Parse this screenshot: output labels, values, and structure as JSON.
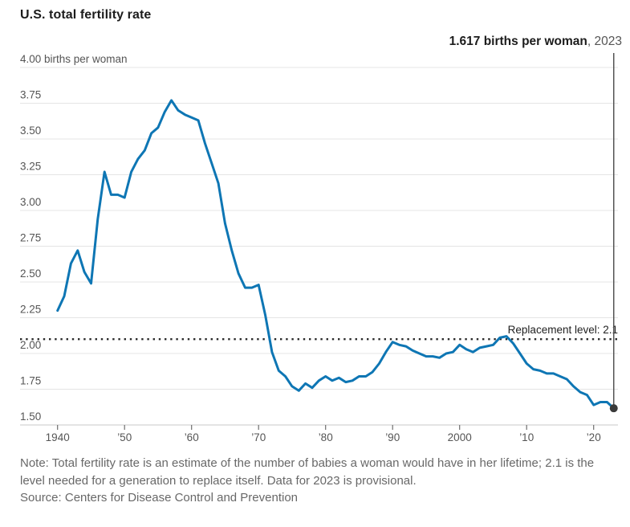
{
  "title": "U.S. total fertility rate",
  "annotation": {
    "value_label": "1.617 births per woman",
    "year_label": ", 2023"
  },
  "replacement_label": "Replacement level: 2.1",
  "note": "Note: Total fertility rate is an estimate of the number of babies a woman would have in her lifetime; 2.1 is the level needed for a generation to replace itself. Data for 2023 is provisional.",
  "source": "Source: Centers for Disease Control and Prevention",
  "colors": {
    "line": "#0e76b4",
    "grid": "#e4e4e4",
    "axis_baseline": "#c8c8c8",
    "tick": "#6e6e6e",
    "tick_label": "#555555",
    "dotted_line": "#2a2a2a",
    "replacement_text": "#222222",
    "marker": "#3a3a3a",
    "marker_line": "#4a4a4a"
  },
  "chart_data": {
    "type": "line",
    "title": "U.S. total fertility rate",
    "xlabel": "",
    "ylabel": "births per woman",
    "ylim": [
      1.5,
      4.0
    ],
    "xlim": [
      1940,
      2023
    ],
    "grid": "horizontal",
    "y_ticks": [
      4.0,
      3.75,
      3.5,
      3.25,
      3.0,
      2.75,
      2.5,
      2.25,
      2.0,
      1.75,
      1.5
    ],
    "y_tick_labels": [
      "4.00 births per woman",
      "3.75",
      "3.50",
      "3.25",
      "3.00",
      "2.75",
      "2.50",
      "2.25",
      "2.00",
      "1.75",
      "1.50"
    ],
    "x_ticks": [
      1940,
      1950,
      1960,
      1970,
      1980,
      1990,
      2000,
      2010,
      2020
    ],
    "x_tick_labels": [
      "1940",
      "’50",
      "’60",
      "’70",
      "’80",
      "’90",
      "2000",
      "’10",
      "’20"
    ],
    "replacement_level": 2.1,
    "series": [
      {
        "name": "U.S. total fertility rate",
        "years": [
          1940,
          1941,
          1942,
          1943,
          1944,
          1945,
          1946,
          1947,
          1948,
          1949,
          1950,
          1951,
          1952,
          1953,
          1954,
          1955,
          1956,
          1957,
          1958,
          1959,
          1960,
          1961,
          1962,
          1963,
          1964,
          1965,
          1966,
          1967,
          1968,
          1969,
          1970,
          1971,
          1972,
          1973,
          1974,
          1975,
          1976,
          1977,
          1978,
          1979,
          1980,
          1981,
          1982,
          1983,
          1984,
          1985,
          1986,
          1987,
          1988,
          1989,
          1990,
          1991,
          1992,
          1993,
          1994,
          1995,
          1996,
          1997,
          1998,
          1999,
          2000,
          2001,
          2002,
          2003,
          2004,
          2005,
          2006,
          2007,
          2008,
          2009,
          2010,
          2011,
          2012,
          2013,
          2014,
          2015,
          2016,
          2017,
          2018,
          2019,
          2020,
          2021,
          2022,
          2023
        ],
        "values": [
          2.3,
          2.4,
          2.63,
          2.72,
          2.57,
          2.49,
          2.94,
          3.27,
          3.11,
          3.11,
          3.09,
          3.27,
          3.36,
          3.42,
          3.54,
          3.58,
          3.69,
          3.77,
          3.7,
          3.67,
          3.65,
          3.63,
          3.47,
          3.33,
          3.19,
          2.91,
          2.72,
          2.56,
          2.46,
          2.46,
          2.48,
          2.27,
          2.01,
          1.88,
          1.84,
          1.77,
          1.74,
          1.79,
          1.76,
          1.81,
          1.84,
          1.81,
          1.83,
          1.8,
          1.81,
          1.84,
          1.84,
          1.87,
          1.93,
          2.01,
          2.08,
          2.06,
          2.05,
          2.02,
          2.0,
          1.98,
          1.98,
          1.97,
          2.0,
          2.01,
          2.06,
          2.03,
          2.01,
          2.04,
          2.05,
          2.06,
          2.11,
          2.12,
          2.07,
          2.0,
          1.93,
          1.89,
          1.88,
          1.86,
          1.86,
          1.84,
          1.82,
          1.77,
          1.73,
          1.71,
          1.64,
          1.66,
          1.66,
          1.617
        ]
      }
    ],
    "end_marker": {
      "year": 2023,
      "value": 1.617
    }
  }
}
